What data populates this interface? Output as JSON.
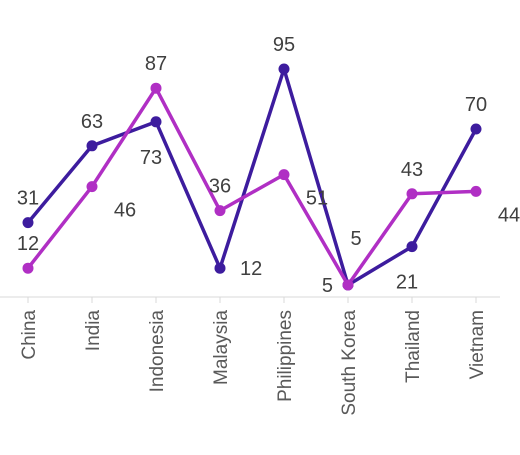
{
  "chart_data": {
    "type": "line",
    "categories": [
      "China",
      "India",
      "Indonesia",
      "Malaysia",
      "Philippines",
      "South Korea",
      "Thailand",
      "Vietnam"
    ],
    "series": [
      {
        "values": [
          31,
          63,
          73,
          12,
          95,
          5,
          21,
          70
        ],
        "color": "#3d1c9e"
      },
      {
        "values": [
          12,
          46,
          87,
          36,
          51,
          5,
          43,
          44
        ],
        "color": "#b02fc4"
      }
    ],
    "ylim": [
      5,
      95
    ],
    "grid": false,
    "legend": "none",
    "axis_color": "#d9d9d9"
  }
}
